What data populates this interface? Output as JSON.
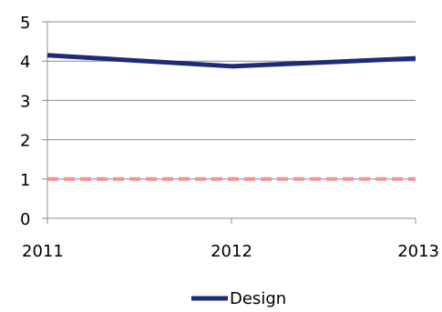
{
  "chart_data": {
    "type": "line",
    "x": [
      "2011",
      "2012",
      "2013"
    ],
    "y_ticks": [
      "0",
      "1",
      "2",
      "3",
      "4",
      "5"
    ],
    "ylim": [
      0,
      5
    ],
    "grid": true,
    "legend_position": "bottom",
    "series": [
      {
        "name": "Design",
        "values": [
          4.15,
          3.87,
          4.07
        ],
        "color": "#1f2a78",
        "style": "solid"
      },
      {
        "values": [
          1.0,
          1.0,
          1.0
        ],
        "color": "#f4928c",
        "style": "dashed"
      }
    ]
  }
}
